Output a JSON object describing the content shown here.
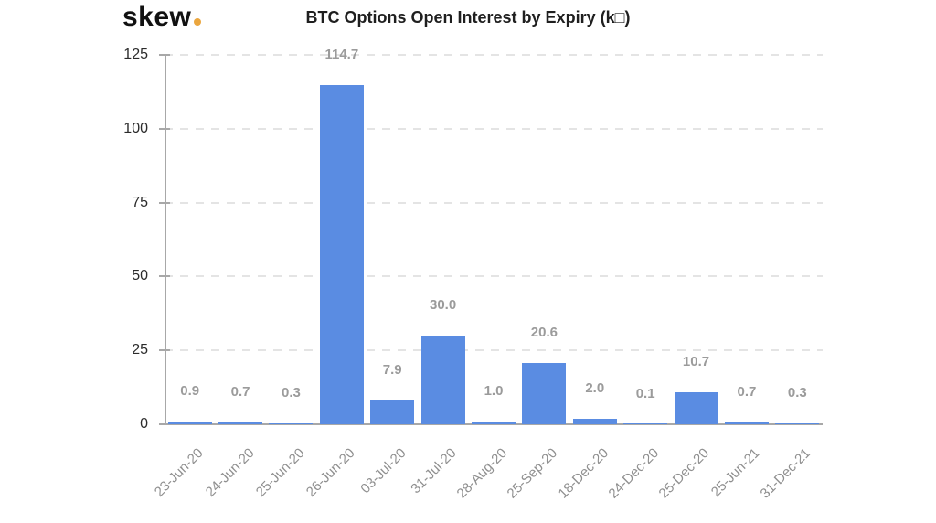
{
  "brand": {
    "logo_text": "skew",
    "logo_dot_color": "#eba63e"
  },
  "chart_data": {
    "type": "bar",
    "title": "BTC Options Open Interest by Expiry (k□)",
    "categories": [
      "23-Jun-20",
      "24-Jun-20",
      "25-Jun-20",
      "26-Jun-20",
      "03-Jul-20",
      "31-Jul-20",
      "28-Aug-20",
      "25-Sep-20",
      "18-Dec-20",
      "24-Dec-20",
      "25-Dec-20",
      "25-Jun-21",
      "31-Dec-21"
    ],
    "values": [
      0.9,
      0.7,
      0.3,
      114.7,
      7.9,
      30.0,
      1.0,
      20.6,
      2.0,
      0.1,
      10.7,
      0.7,
      0.3
    ],
    "value_labels": [
      "0.9",
      "0.7",
      "0.3",
      "114.7",
      "7.9",
      "30.0",
      "1.0",
      "20.6",
      "2.0",
      "0.1",
      "10.7",
      "0.7",
      "0.3"
    ],
    "xlabel": "",
    "ylabel": "",
    "y_ticks": [
      0,
      25,
      50,
      75,
      100,
      125
    ],
    "ylim": [
      0,
      125
    ],
    "grid": "horizontal-dashed",
    "legend": "none",
    "x_tick_rotation_deg": -45,
    "colors": {
      "bar": "#5a8ce2",
      "value_label": "#9b9b9b",
      "axis": "#a8a8a8",
      "gridline": "#e4e4e4",
      "x_tick_label": "#8f8f8f",
      "y_tick_label": "#2b2b2b",
      "title": "#1f1f1f"
    }
  }
}
